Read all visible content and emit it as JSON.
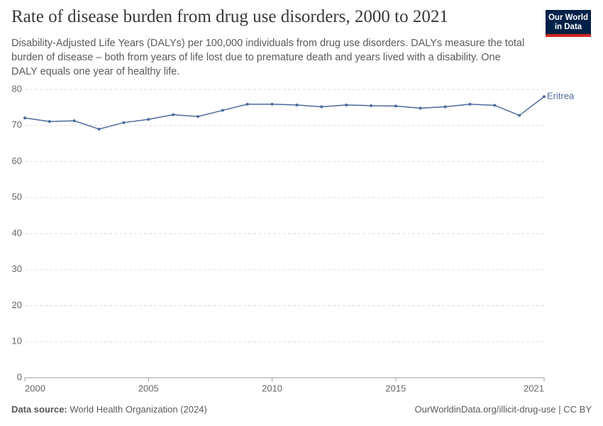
{
  "chart_data": {
    "type": "line",
    "title": "Rate of disease burden from drug use disorders, 2000 to 2021",
    "subtitle": "Disability-Adjusted Life Years (DALYs) per 100,000 individuals from drug use disorders. DALYs measure the total burden of disease – both from years of life lost due to premature death and years lived with a disability. One DALY equals one year of healthy life.",
    "logo": [
      "Our World",
      "in Data"
    ],
    "source_label": "Data source:",
    "source": "World Health Organization (2024)",
    "footer_right": "OurWorldinData.org/illicit-drug-use | CC BY",
    "x": [
      2000,
      2001,
      2002,
      2003,
      2004,
      2005,
      2006,
      2007,
      2008,
      2009,
      2010,
      2011,
      2012,
      2013,
      2014,
      2015,
      2016,
      2017,
      2018,
      2019,
      2020,
      2021
    ],
    "series": [
      {
        "name": "Eritrea",
        "color": "#4c6a9c",
        "values": [
          72.1,
          71.1,
          71.3,
          69.0,
          70.8,
          71.7,
          73.0,
          72.5,
          74.2,
          75.9,
          75.9,
          75.7,
          75.2,
          75.7,
          75.5,
          75.4,
          74.8,
          75.2,
          75.9,
          75.6,
          72.8,
          78.0
        ]
      }
    ],
    "xlim": [
      2000,
      2021
    ],
    "xticks": [
      2000,
      2005,
      2010,
      2015,
      2021
    ],
    "ylim": [
      0,
      80
    ],
    "yticks": [
      0,
      10,
      20,
      30,
      40,
      50,
      60,
      70,
      80
    ],
    "grid": true
  }
}
